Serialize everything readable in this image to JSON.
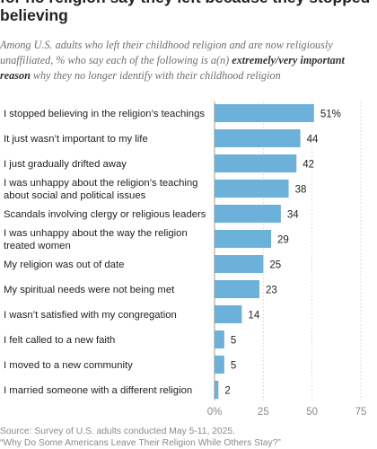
{
  "title": "for no religion say they left because they stopped believing",
  "subtitle": {
    "before": "Among U.S. adults who left their childhood religion and are now religiously unaffiliated, % who say each of the following is a(n) ",
    "emphasis": "extremely/very important reason",
    "after": " why they no longer identify with their childhood religion"
  },
  "source_lines": [
    "Source: Survey of U.S. adults conducted May 5-11, 2025.",
    "“Why Do Some Americans Leave Their Religion While Others Stay?”"
  ],
  "chart_data": {
    "type": "bar",
    "orientation": "horizontal",
    "categories": [
      [
        "I stopped believing in the religion’s teachings"
      ],
      [
        "It just wasn’t important to my life"
      ],
      [
        "I just gradually drifted away"
      ],
      [
        "I was unhappy about the religion’s teaching",
        "about social and political issues"
      ],
      [
        "Scandals involving clergy or religious leaders"
      ],
      [
        "I was unhappy about the way the religion",
        "treated women"
      ],
      [
        "My religion was out of date"
      ],
      [
        "My spiritual needs were not being met"
      ],
      [
        "I wasn’t satisfied with my congregation"
      ],
      [
        "I felt called to a new faith"
      ],
      [
        "I moved to a new community"
      ],
      [
        "I married someone with a different religion"
      ]
    ],
    "values": [
      51,
      44,
      42,
      38,
      34,
      29,
      25,
      23,
      14,
      5,
      5,
      2
    ],
    "value_labels": [
      "51%",
      "44",
      "42",
      "38",
      "34",
      "29",
      "25",
      "23",
      "14",
      "5",
      "5",
      "2"
    ],
    "xlim": [
      0,
      75
    ],
    "xticks": [
      0,
      25,
      50,
      75
    ],
    "xtick_labels": [
      "0%",
      "25",
      "50",
      "75"
    ],
    "grid": true,
    "bar_color": "#6cb1d9",
    "grid_color": "#dcdcdc",
    "axis_color": "#999999"
  }
}
